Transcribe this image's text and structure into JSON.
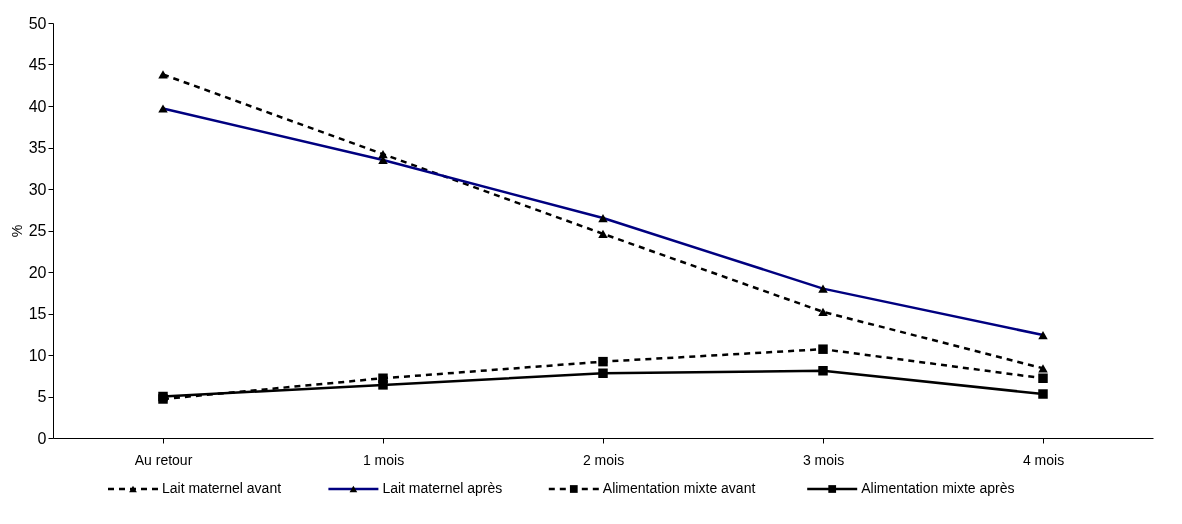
{
  "chart_data": {
    "type": "line",
    "ylabel": "%",
    "categories": [
      "Au retour",
      "1 mois",
      "2 mois",
      "3 mois",
      "4 mois"
    ],
    "series": [
      {
        "name": "Lait maternel avant",
        "color": "#000000",
        "line_style": "dashed",
        "marker": "triangle",
        "values": [
          43.8,
          34.2,
          24.6,
          15.2,
          8.4
        ]
      },
      {
        "name": "Lait maternel après",
        "color": "#000080",
        "line_style": "solid",
        "marker": "triangle",
        "values": [
          39.7,
          33.5,
          26.5,
          18.0,
          12.4
        ]
      },
      {
        "name": "Alimentation mixte avant",
        "color": "#000000",
        "line_style": "dashed",
        "marker": "square",
        "values": [
          4.7,
          7.2,
          9.2,
          10.7,
          7.2
        ]
      },
      {
        "name": "Alimentation mixte après",
        "color": "#000000",
        "line_style": "solid",
        "marker": "square",
        "values": [
          5.0,
          6.4,
          7.8,
          8.1,
          5.3
        ]
      }
    ],
    "ylim": [
      0,
      50
    ],
    "yticks": [
      0,
      5,
      10,
      15,
      20,
      25,
      30,
      35,
      40,
      45,
      50
    ],
    "grid": false,
    "legend": "bottom"
  }
}
